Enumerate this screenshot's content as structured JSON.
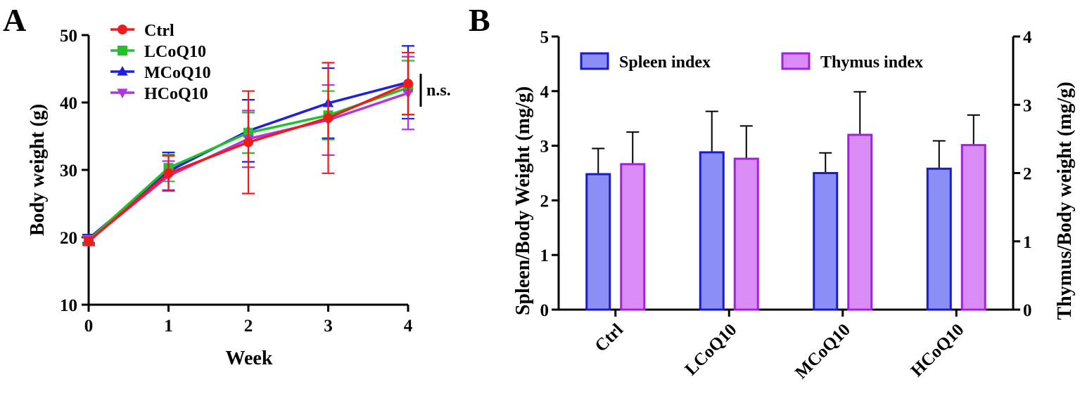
{
  "panels": {
    "a": "A",
    "b": "B"
  },
  "chart_data": [
    {
      "type": "line",
      "x": [
        0,
        1,
        2,
        3,
        4
      ],
      "xlabel": "Week",
      "ylabel": "Body weight (g)",
      "xlim": [
        0,
        4
      ],
      "ylim": [
        10,
        50
      ],
      "xticks": [
        "0",
        "1",
        "2",
        "3",
        "4"
      ],
      "yticks": [
        "10",
        "20",
        "30",
        "40",
        "50"
      ],
      "annotation": "n.s.",
      "legend_position": "top-left",
      "series": [
        {
          "name": "MCoQ10",
          "color": "#1f1fe0",
          "marker": "triangle-up",
          "values": [
            19.8,
            29.8,
            35.8,
            39.9,
            43.0
          ],
          "errors": [
            0.6,
            2.8,
            4.6,
            5.2,
            5.4
          ]
        },
        {
          "name": "LCoQ10",
          "color": "#22c02a",
          "marker": "square",
          "values": [
            19.6,
            30.3,
            35.5,
            38.1,
            42.2
          ],
          "errors": [
            0.6,
            2.0,
            3.0,
            3.6,
            4.0
          ]
        },
        {
          "name": "HCoQ10",
          "color": "#b233e0",
          "marker": "triangle-down",
          "values": [
            19.5,
            29.1,
            34.6,
            37.4,
            41.4
          ],
          "errors": [
            0.6,
            2.2,
            4.2,
            5.2,
            5.4
          ]
        },
        {
          "name": "Ctrl",
          "color": "#ee1b1b",
          "marker": "circle",
          "values": [
            19.4,
            29.5,
            34.1,
            37.7,
            42.8
          ],
          "errors": [
            0.6,
            2.6,
            7.6,
            8.2,
            4.6
          ]
        }
      ]
    },
    {
      "type": "bar",
      "categories": [
        "Ctrl",
        "LCoQ10",
        "MCoQ10",
        "HCoQ10"
      ],
      "ylabel": "Spleen/Body Weight (mg/g)",
      "y2label": "Thymus/Body weight (mg/g)",
      "ylim": [
        0,
        5
      ],
      "y2lim": [
        0,
        4
      ],
      "yticks": [
        "0",
        "1",
        "2",
        "3",
        "4",
        "5"
      ],
      "y2ticks": [
        "0",
        "1",
        "2",
        "3",
        "4"
      ],
      "legend_position": "top",
      "series": [
        {
          "name": "Spleen index",
          "axis": "left",
          "fill": "#8a8ef5",
          "stroke": "#1a1ac8",
          "values": [
            2.48,
            2.88,
            2.5,
            2.58
          ],
          "errors": [
            0.47,
            0.75,
            0.37,
            0.51
          ]
        },
        {
          "name": "Thymus index",
          "axis": "right",
          "fill": "#d98cf5",
          "stroke": "#a61fe0",
          "values": [
            2.13,
            2.21,
            2.56,
            2.41
          ],
          "errors": [
            0.47,
            0.48,
            0.63,
            0.44
          ]
        }
      ]
    }
  ]
}
